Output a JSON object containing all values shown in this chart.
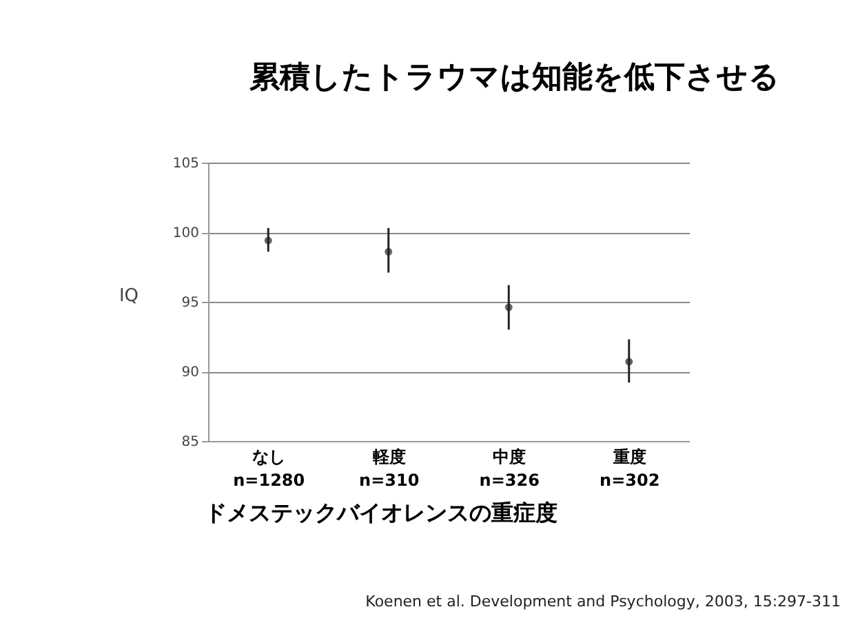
{
  "chart_data": {
    "type": "scatter",
    "title": "累積したトラウマは知能を低下させる",
    "xlabel": "ドメステックバイオレンスの重症度",
    "ylabel": "IQ",
    "categories": [
      "なし\nn=1280",
      "軽度\nn=310",
      "中度\nn=326",
      "重度\nn=302"
    ],
    "series": [
      {
        "color": "#222222",
        "values": [
          99.4,
          98.6,
          94.6,
          90.7
        ],
        "errors": [
          [
            98.6,
            100.3
          ],
          [
            97.1,
            100.3
          ],
          [
            93.0,
            96.2
          ],
          [
            89.2,
            92.3
          ]
        ]
      }
    ],
    "ylim": [
      85,
      105
    ],
    "yticks": [
      85,
      90,
      95,
      100,
      105
    ],
    "grid": "y",
    "marker": "circle",
    "annotations": [
      "Koenen et al. Development and Psychology, 2003, 15:297-311"
    ]
  }
}
